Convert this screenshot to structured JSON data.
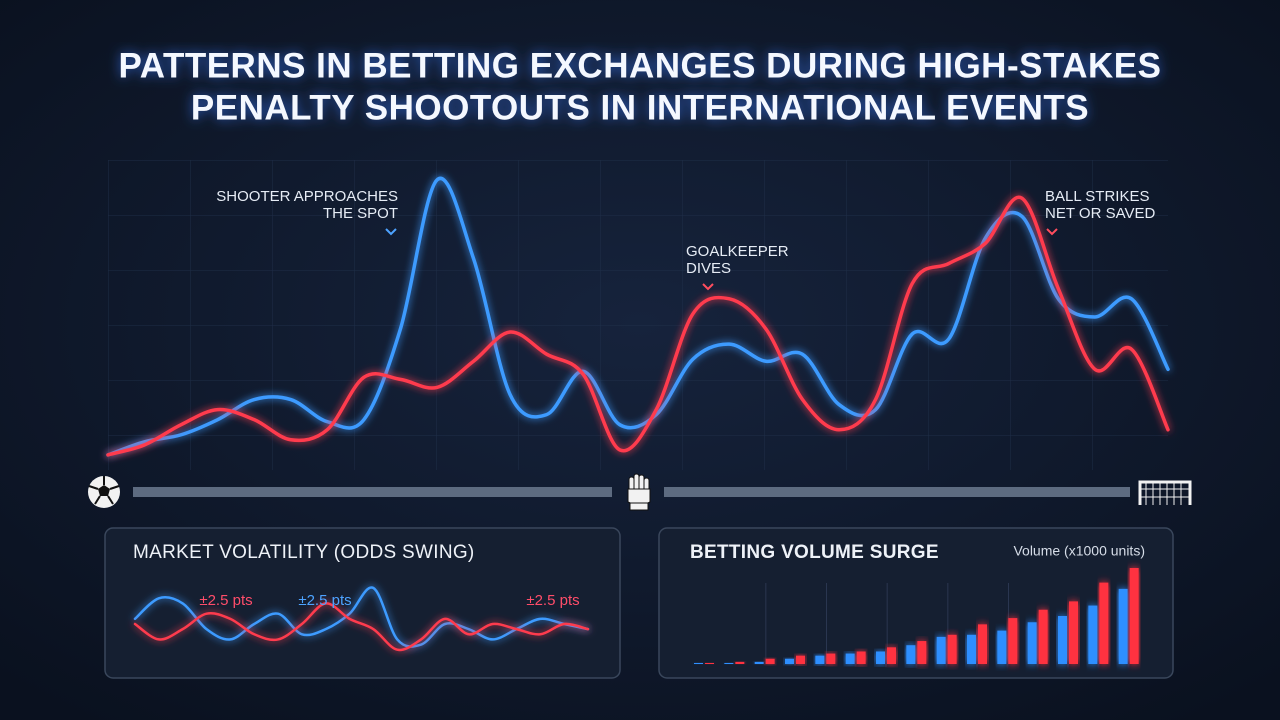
{
  "title_lines": [
    "PATTERNS IN BETTING EXCHANGES DURING HIGH-STAKES",
    "PENALTY SHOOTOUTS IN INTERNATIONAL EVENTS"
  ],
  "chart_data": [
    {
      "type": "line",
      "annotations": [
        {
          "lines": [
            "SHOOTER APPROACHES",
            "THE SPOT"
          ],
          "color": "#4da3ff"
        },
        {
          "lines": [
            "GOALKEEPER",
            "DIVES"
          ],
          "color": "#ff4d5e"
        },
        {
          "lines": [
            "BALL STRIKES",
            "NET OR SAVED"
          ],
          "color": "#ff4d5e"
        }
      ],
      "series": [
        {
          "color": "#3d9bff",
          "values": [
            15,
            28,
            35,
            50,
            70,
            70,
            48,
            50,
            140,
            288,
            210,
            75,
            55,
            98,
            45,
            55,
            110,
            125,
            108,
            115,
            65,
            60,
            135,
            130,
            230,
            252,
            170,
            152,
            170,
            100
          ]
        },
        {
          "color": "#ff3b4e",
          "values": [
            15,
            25,
            45,
            60,
            50,
            30,
            40,
            92,
            90,
            82,
            108,
            137,
            115,
            95,
            20,
            60,
            155,
            170,
            140,
            70,
            40,
            70,
            185,
            205,
            225,
            270,
            180,
            100,
            120,
            40
          ]
        }
      ]
    },
    {
      "type": "line",
      "title": "MARKET VOLATILITY (ODDS SWING)",
      "annotations": [
        {
          "text": "±2.5 pts",
          "color": "#ff4d6a"
        },
        {
          "text": "±2.5 pts",
          "color": "#4da3ff"
        },
        {
          "text": "±2.5 pts",
          "color": "#ff4d6a"
        }
      ],
      "series": [
        {
          "color": "#3d9bff",
          "values": [
            40,
            60,
            55,
            30,
            20,
            35,
            45,
            25,
            30,
            45,
            70,
            20,
            15,
            35,
            30,
            20,
            30,
            40,
            35,
            30
          ]
        },
        {
          "color": "#ff3b4e",
          "values": [
            35,
            20,
            30,
            45,
            40,
            25,
            20,
            35,
            55,
            40,
            30,
            10,
            20,
            40,
            25,
            35,
            30,
            25,
            35,
            30
          ]
        }
      ]
    },
    {
      "type": "bar",
      "title": "BETTING VOLUME SURGE",
      "y_label": "Volume (x1000 units)",
      "series": [
        {
          "color": "#2f8fff",
          "values": [
            1,
            1,
            2,
            5,
            8,
            10,
            12,
            18,
            26,
            28,
            32,
            40,
            46,
            56,
            72
          ]
        },
        {
          "color": "#ff3040",
          "values": [
            1,
            2,
            5,
            8,
            10,
            12,
            16,
            22,
            28,
            38,
            44,
            52,
            60,
            78,
            92
          ]
        }
      ]
    }
  ]
}
